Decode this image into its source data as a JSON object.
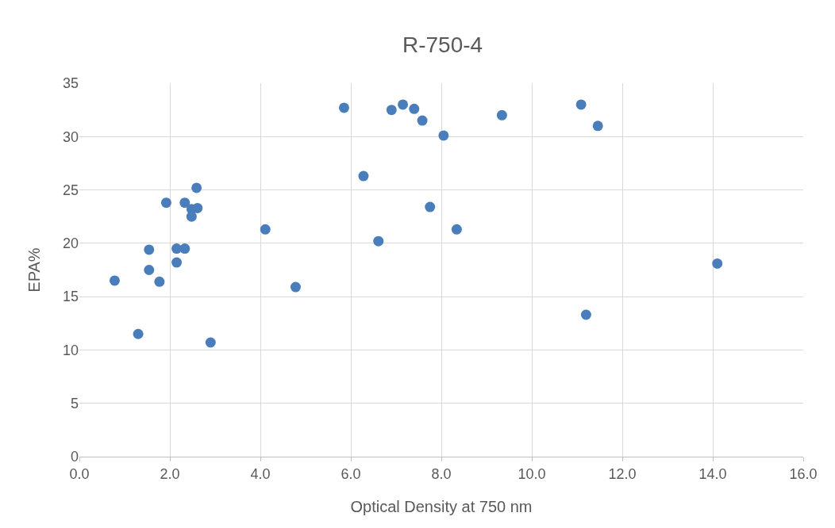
{
  "chart_data": {
    "type": "scatter",
    "title": "R-750-4",
    "xlabel": "Optical Density at 750 nm",
    "ylabel": "EPA%",
    "x": [
      0.78,
      1.3,
      1.54,
      1.54,
      1.77,
      1.92,
      2.15,
      2.15,
      2.33,
      2.33,
      2.48,
      2.48,
      2.59,
      2.61,
      2.9,
      4.11,
      4.78,
      5.85,
      6.28,
      6.61,
      6.9,
      7.15,
      7.4,
      7.58,
      7.75,
      8.05,
      8.34,
      9.34,
      11.09,
      11.2,
      11.46,
      14.1
    ],
    "values": [
      16.5,
      11.5,
      19.4,
      17.5,
      16.4,
      23.8,
      19.5,
      18.2,
      23.8,
      19.5,
      23.2,
      22.5,
      25.2,
      23.3,
      10.7,
      21.3,
      15.9,
      32.7,
      26.3,
      20.2,
      32.5,
      33.0,
      32.6,
      31.5,
      23.4,
      30.1,
      21.3,
      32.0,
      33.0,
      13.3,
      31.0,
      18.1
    ],
    "color": "#4a7ebb",
    "marker": "circle",
    "grid": true,
    "xlim": [
      0,
      16
    ],
    "xticks": [
      {
        "value": 0,
        "label": "0.0"
      },
      {
        "value": 2,
        "label": "2.0"
      },
      {
        "value": 4,
        "label": "4.0"
      },
      {
        "value": 6,
        "label": "6.0"
      },
      {
        "value": 8,
        "label": "8.0"
      },
      {
        "value": 10,
        "label": "10.0"
      },
      {
        "value": 12,
        "label": "12.0"
      },
      {
        "value": 14,
        "label": "14.0"
      },
      {
        "value": 16,
        "label": "16.0"
      }
    ],
    "ylim": [
      0,
      35
    ],
    "yticks": [
      0,
      5,
      10,
      15,
      20,
      25,
      30,
      35
    ]
  }
}
